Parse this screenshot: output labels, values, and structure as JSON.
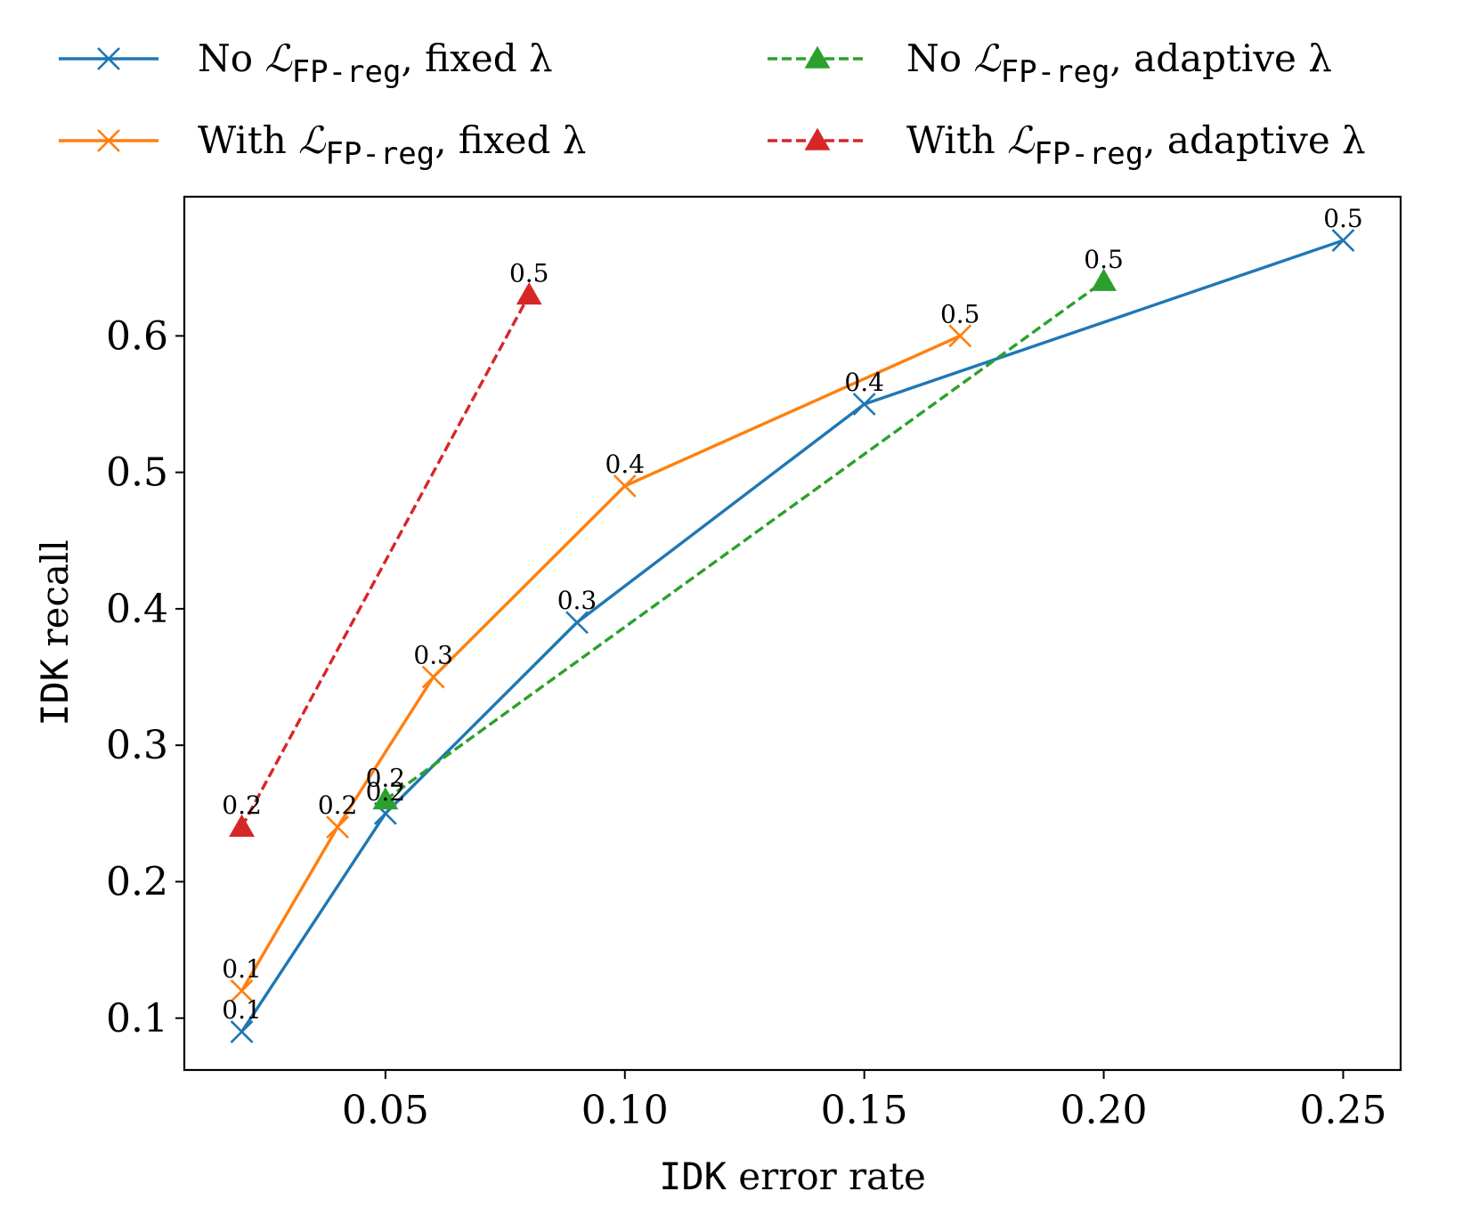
{
  "chart_data": {
    "type": "line",
    "xlabel_mono": "IDK",
    "xlabel_rest": " error rate",
    "ylabel_mono": "IDK",
    "ylabel_rest": " recall",
    "xlim": [
      0.008,
      0.262
    ],
    "ylim": [
      0.062,
      0.702
    ],
    "xticks": [
      0.05,
      0.1,
      0.15,
      0.2,
      0.25
    ],
    "xtick_labels": [
      "0.05",
      "0.10",
      "0.15",
      "0.20",
      "0.25"
    ],
    "yticks": [
      0.1,
      0.2,
      0.3,
      0.4,
      0.5,
      0.6
    ],
    "ytick_labels": [
      "0.1",
      "0.2",
      "0.3",
      "0.4",
      "0.5",
      "0.6"
    ],
    "grid": false,
    "legend_placement": "top, outside, two columns",
    "series": [
      {
        "legend_prefix": "No ",
        "legend_suffix": ", fixed λ",
        "color": "#1f77b4",
        "marker": "x",
        "linestyle": "solid",
        "points": [
          {
            "x": 0.02,
            "y": 0.09,
            "label": "0.1"
          },
          {
            "x": 0.05,
            "y": 0.25,
            "label": "0.2"
          },
          {
            "x": 0.09,
            "y": 0.39,
            "label": "0.3"
          },
          {
            "x": 0.15,
            "y": 0.55,
            "label": "0.4"
          },
          {
            "x": 0.25,
            "y": 0.67,
            "label": "0.5"
          }
        ]
      },
      {
        "legend_prefix": "With ",
        "legend_suffix": ", fixed λ",
        "color": "#ff7f0e",
        "marker": "x",
        "linestyle": "solid",
        "points": [
          {
            "x": 0.02,
            "y": 0.12,
            "label": "0.1"
          },
          {
            "x": 0.04,
            "y": 0.24,
            "label": "0.2"
          },
          {
            "x": 0.06,
            "y": 0.35,
            "label": "0.3"
          },
          {
            "x": 0.1,
            "y": 0.49,
            "label": "0.4"
          },
          {
            "x": 0.17,
            "y": 0.6,
            "label": "0.5"
          }
        ]
      },
      {
        "legend_prefix": "No ",
        "legend_suffix": ", adaptive λ",
        "color": "#2ca02c",
        "marker": "triangle",
        "linestyle": "dashed",
        "points": [
          {
            "x": 0.05,
            "y": 0.26,
            "label": "0.2"
          },
          {
            "x": 0.2,
            "y": 0.64,
            "label": "0.5"
          }
        ]
      },
      {
        "legend_prefix": "With ",
        "legend_suffix": ", adaptive λ",
        "color": "#d62728",
        "marker": "triangle",
        "linestyle": "dashed",
        "points": [
          {
            "x": 0.02,
            "y": 0.24,
            "label": "0.2"
          },
          {
            "x": 0.08,
            "y": 0.63,
            "label": "0.5"
          }
        ]
      }
    ],
    "loss_symbol": "ℒ",
    "loss_subscript": "FP-reg"
  }
}
